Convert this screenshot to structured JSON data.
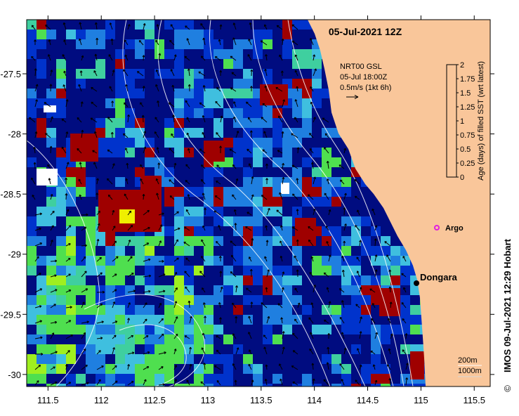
{
  "map": {
    "date_title": "05-Jul-2021 12Z",
    "current_info": {
      "line1": "NRT00 GSL",
      "line2": "05-Jul 18:00Z",
      "line3": "0.5m/s (1kt 6h)"
    },
    "places": [
      {
        "name": "Dongara",
        "lon": 114.93,
        "lat": -29.26
      },
      {
        "name": "Argo",
        "lon": 115.1,
        "lat": -28.78
      }
    ],
    "depth_contours": [
      "200m",
      "1000m"
    ],
    "credit": "IMOS 09-Jul-2021 12:29 Hobart",
    "copyright_symbol": "©",
    "colorbar": {
      "label": "Age (days) of filled SST (wrt latest)",
      "ticks": [
        "0",
        "0.25",
        "0.5",
        "0.75",
        "1",
        "1.25",
        "1.5",
        "1.75",
        "2"
      ],
      "colors": [
        "#000c80",
        "#0033cc",
        "#1f7fe0",
        "#3fbfdf",
        "#3fcf9f",
        "#4fdf4f",
        "#9fef1f",
        "#efef00",
        "#9f0000"
      ]
    },
    "axes": {
      "lon_range": [
        111.3,
        115.65
      ],
      "lat_range": [
        -30.1,
        -27.05
      ],
      "lon_ticks": [
        "111.5",
        "112",
        "112.5",
        "113",
        "113.5",
        "114",
        "114.5",
        "115",
        "115.5"
      ],
      "lat_ticks": [
        "-27.5",
        "-28",
        "-28.5",
        "-29",
        "-29.5",
        "-30"
      ]
    },
    "colors": {
      "land": "#f9c69a",
      "deep_ocean": "#000c80",
      "contour": "#ffffff",
      "arrow": "#000000",
      "argo_marker": "#e020e0"
    }
  }
}
